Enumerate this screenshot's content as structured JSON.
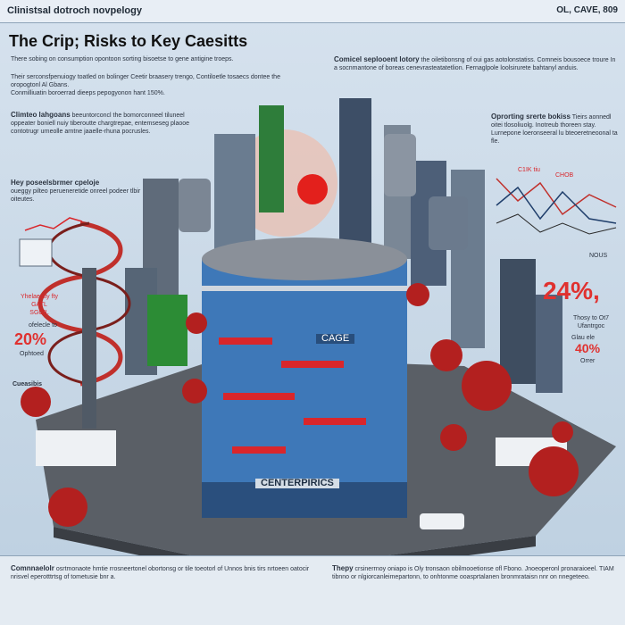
{
  "masthead": {
    "left": "Clinistsal dotroch novpelogy",
    "right": "OL, CAVE, 809"
  },
  "headline": "The Crip; Risks to Key Caesitts",
  "intro": {
    "line1": "There sobing on consumption opontoon sorting bisoetse to gene antigine troeps.",
    "line2": "Their serconsfpenuiogy toatled on bolinger Ceetir braasery trengo, Contiloetle tosaecs dontee the oropogtonl Al Gbans.",
    "line3": "Conmilliuatin boroerrad dieeps pepogyonon hant 150%."
  },
  "left_col": {
    "head1": "Climteo lahgoans",
    "body1": "beeuntorconcl the bomorconneel tiluneel oppeater boniell nuiy tiberoutte chargtrepae, entemseseg plaooe contotrugr urneolle arntne jaaelle-rhuna pocrusles.",
    "head2": "Hey poseelsbrmer cpeloje",
    "body2": "oueggy pilteo perueneretide onreel podeer tlbir oiteutes.",
    "note1": "Yhelaeotiy fty",
    "note2": "GATL",
    "note3": "SGOIL",
    "pct_label": "ofelecle to",
    "pct": "20%",
    "pct_sub": "Ophtoed",
    "bottom_label": "Cueasibis"
  },
  "right_col": {
    "head1": "Comicel seplooent lotory",
    "body1": "the oiletibonsng of oui gas aotolonstatiss. Comneis bousoece troure In a socnmantone of boreas cenevrasteatatetlion. Fernaglpole loolsirurete bahtanyl anduis.",
    "head2": "Oprorting srerte bokiss",
    "body2": "Tieirs aonnedl oitei tlosoliuolg. Inotreub thoreen stay. Lurnepone loeronseeral lu bteoeretneoonal ta fle.",
    "chart_label1": "C1IK tiu",
    "chart_label2": "CHOB",
    "chart_label3": "NOUS",
    "pct1": "24%,",
    "note": "Thosy to Ot7 Ufantrgoc",
    "pct2_prefix": "Glau ele",
    "pct2": "40%",
    "pct2_sub": "Orrer"
  },
  "building": {
    "sign1": "CAGE",
    "sign2": "CENTERPIRICS"
  },
  "bottom": {
    "head_left": "Comnnaelolr",
    "body_left": "osrtmonaote hmtie rrosneertonel obortonsg or tile toeotorl of Unnos bnis tirs nrtoeen oatocir nrisvel eperotttrtsg of tometusie bnr a.",
    "head_right": "Thepy",
    "body_right": "crsinerrnoy oniapo is Oly tronsaon obilmooetionse ofl Fbono. Jnoeoperonl pronaraioeel. TIAM tibnno or nlgiorcanleimepartonn, to onhtonme ooasprtalanen bronmrataisn nnr on nnegeteeo."
  },
  "colors": {
    "accent": "#e0312f",
    "virus": "#b3201f",
    "sky_top": "#d6e2ee",
    "building_blue": "#3e78b8"
  }
}
